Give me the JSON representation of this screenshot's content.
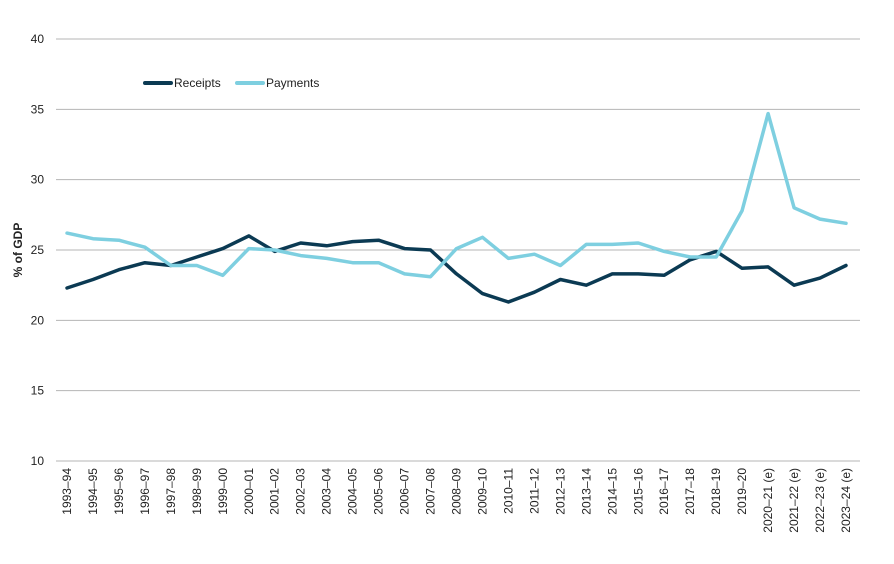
{
  "chart_data": {
    "type": "line",
    "title": "",
    "xlabel": "",
    "ylabel": "% of GDP",
    "ylim": [
      10,
      40
    ],
    "yticks": [
      10,
      15,
      20,
      25,
      30,
      35,
      40
    ],
    "grid": true,
    "legend_position": "top-left",
    "categories": [
      "1993–94",
      "1994–95",
      "1995–96",
      "1996–97",
      "1997–98",
      "1998–99",
      "1999–00",
      "2000–01",
      "2001–02",
      "2002–03",
      "2003–04",
      "2004–05",
      "2005–06",
      "2006–07",
      "2007–08",
      "2008–09",
      "2009–10",
      "2010–11",
      "2011–12",
      "2012–13",
      "2013–14",
      "2014–15",
      "2015–16",
      "2016–17",
      "2017–18",
      "2018–19",
      "2019–20",
      "2020–21 (e)",
      "2021–22 (e)",
      "2022–23 (e)",
      "2023–24 (e)"
    ],
    "series": [
      {
        "name": "Receipts",
        "color": "#0b3a53",
        "values": [
          22.3,
          22.9,
          23.6,
          24.1,
          23.9,
          24.5,
          25.1,
          26.0,
          24.9,
          25.5,
          25.3,
          25.6,
          25.7,
          25.1,
          25.0,
          23.3,
          21.9,
          21.3,
          22.0,
          22.9,
          22.5,
          23.3,
          23.3,
          23.2,
          24.3,
          24.9,
          23.7,
          23.8,
          22.5,
          23.0,
          23.9
        ]
      },
      {
        "name": "Payments",
        "color": "#7ecfe0",
        "values": [
          26.2,
          25.8,
          25.7,
          25.2,
          23.9,
          23.9,
          23.2,
          25.1,
          25.0,
          24.6,
          24.4,
          24.1,
          24.1,
          23.3,
          23.1,
          25.1,
          25.9,
          24.4,
          24.7,
          23.9,
          25.4,
          25.4,
          25.5,
          24.9,
          24.5,
          24.5,
          27.8,
          34.7,
          28.0,
          27.2,
          26.9
        ]
      }
    ]
  }
}
